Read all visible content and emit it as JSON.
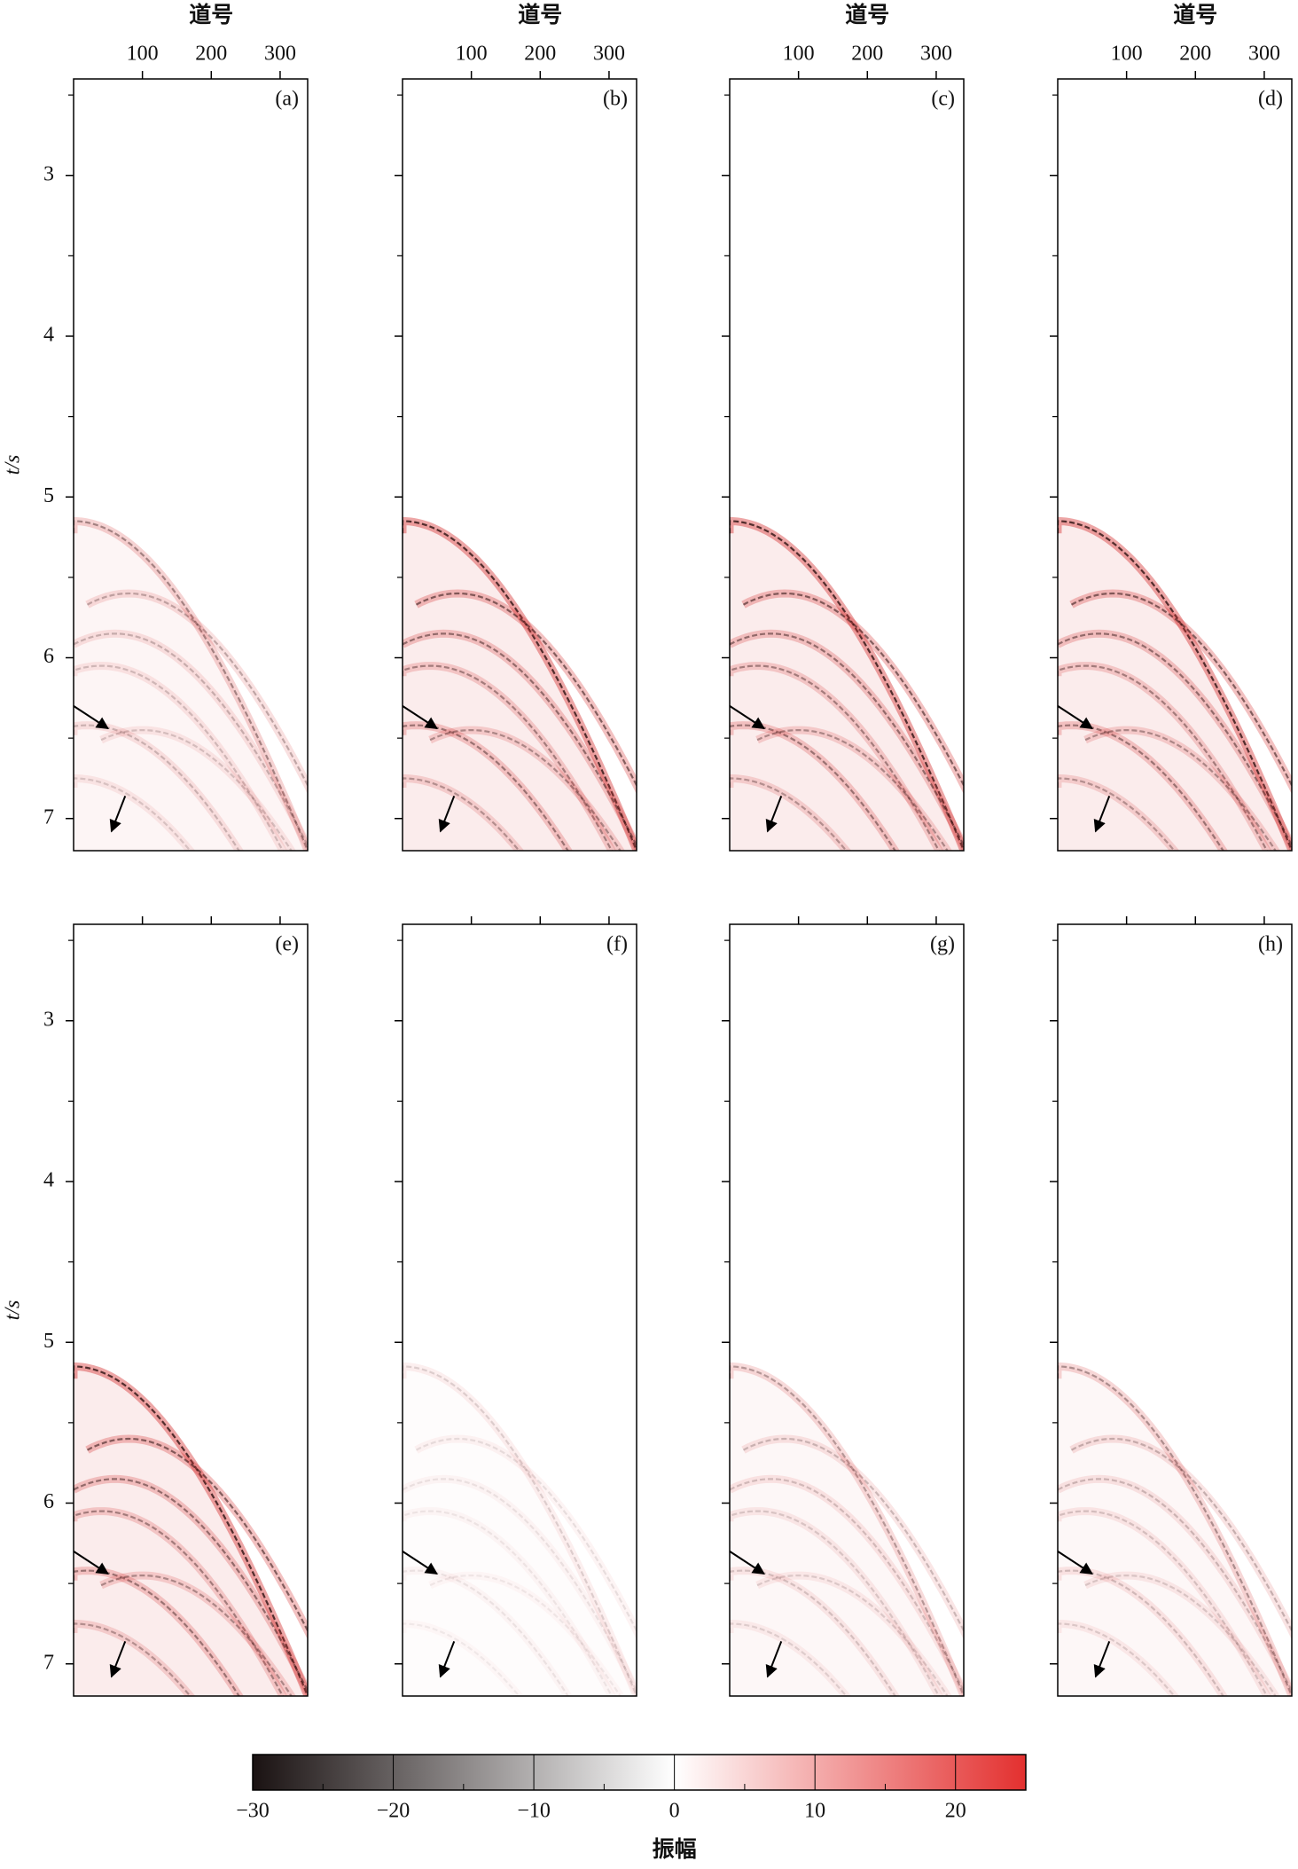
{
  "chart_data": [
    {
      "type": "heatmap",
      "label": "(a)",
      "xlabel": "道号",
      "xlim": [
        0,
        340
      ],
      "xticks": [
        100,
        200,
        300
      ],
      "ylim": [
        2.4,
        7.2
      ],
      "yinverted": true,
      "yticks": [
        3,
        4,
        5,
        6,
        7
      ],
      "yminorticks": [
        2.5,
        3.5,
        4.5,
        5.5,
        6.5
      ],
      "ylabel": "t/s"
    },
    {
      "type": "heatmap",
      "label": "(b)",
      "xlabel": "道号",
      "xlim": [
        0,
        340
      ],
      "xticks": [
        100,
        200,
        300
      ],
      "ylim": [
        2.4,
        7.2
      ],
      "yinverted": true,
      "yticks": [
        3,
        4,
        5,
        6,
        7
      ],
      "yminorticks": [
        2.5,
        3.5,
        4.5,
        5.5,
        6.5
      ],
      "yticklabels": false
    },
    {
      "type": "heatmap",
      "label": "(c)",
      "xlabel": "道号",
      "xlim": [
        0,
        340
      ],
      "xticks": [
        100,
        200,
        300
      ],
      "ylim": [
        2.4,
        7.2
      ],
      "yinverted": true,
      "yticks": [
        3,
        4,
        5,
        6,
        7
      ],
      "yminorticks": [
        2.5,
        3.5,
        4.5,
        5.5,
        6.5
      ],
      "yticklabels": false
    },
    {
      "type": "heatmap",
      "label": "(d)",
      "xlabel": "道号",
      "xlim": [
        0,
        340
      ],
      "xticks": [
        100,
        200,
        300
      ],
      "ylim": [
        2.4,
        7.2
      ],
      "yinverted": true,
      "yticks": [
        3,
        4,
        5,
        6,
        7
      ],
      "yminorticks": [
        2.5,
        3.5,
        4.5,
        5.5,
        6.5
      ],
      "yticklabels": false
    },
    {
      "type": "heatmap",
      "label": "(e)",
      "xlim": [
        0,
        340
      ],
      "xticks": [
        100,
        200,
        300
      ],
      "xticklabels": false,
      "ylim": [
        2.4,
        7.2
      ],
      "yinverted": true,
      "yticks": [
        3,
        4,
        5,
        6,
        7
      ],
      "yminorticks": [
        2.5,
        3.5,
        4.5,
        5.5,
        6.5
      ],
      "ylabel": "t/s"
    },
    {
      "type": "heatmap",
      "label": "(f)",
      "xlim": [
        0,
        340
      ],
      "xticks": [
        100,
        200,
        300
      ],
      "xticklabels": false,
      "ylim": [
        2.4,
        7.2
      ],
      "yinverted": true,
      "yticks": [
        3,
        4,
        5,
        6,
        7
      ],
      "yminorticks": [
        2.5,
        3.5,
        4.5,
        5.5,
        6.5
      ],
      "yticklabels": false
    },
    {
      "type": "heatmap",
      "label": "(g)",
      "xlim": [
        0,
        340
      ],
      "xticks": [
        100,
        200,
        300
      ],
      "xticklabels": false,
      "ylim": [
        2.4,
        7.2
      ],
      "yinverted": true,
      "yticks": [
        3,
        4,
        5,
        6,
        7
      ],
      "yminorticks": [
        2.5,
        3.5,
        4.5,
        5.5,
        6.5
      ],
      "yticklabels": false
    },
    {
      "type": "heatmap",
      "label": "(h)",
      "xlim": [
        0,
        340
      ],
      "xticks": [
        100,
        200,
        300
      ],
      "xticklabels": false,
      "ylim": [
        2.4,
        7.2
      ],
      "yinverted": true,
      "yticks": [
        3,
        4,
        5,
        6,
        7
      ],
      "yminorticks": [
        2.5,
        3.5,
        4.5,
        5.5,
        6.5
      ],
      "yticklabels": false
    }
  ],
  "colorbar": {
    "label": "振幅",
    "lim": [
      -30,
      25
    ],
    "colors": [
      "#1a1212",
      "#ffffff",
      "#e3302f"
    ],
    "ticks": [
      {
        "value": -30,
        "label": "−30"
      },
      {
        "value": -20,
        "label": "−20"
      },
      {
        "value": -10,
        "label": "−10"
      },
      0,
      10,
      20
    ]
  }
}
